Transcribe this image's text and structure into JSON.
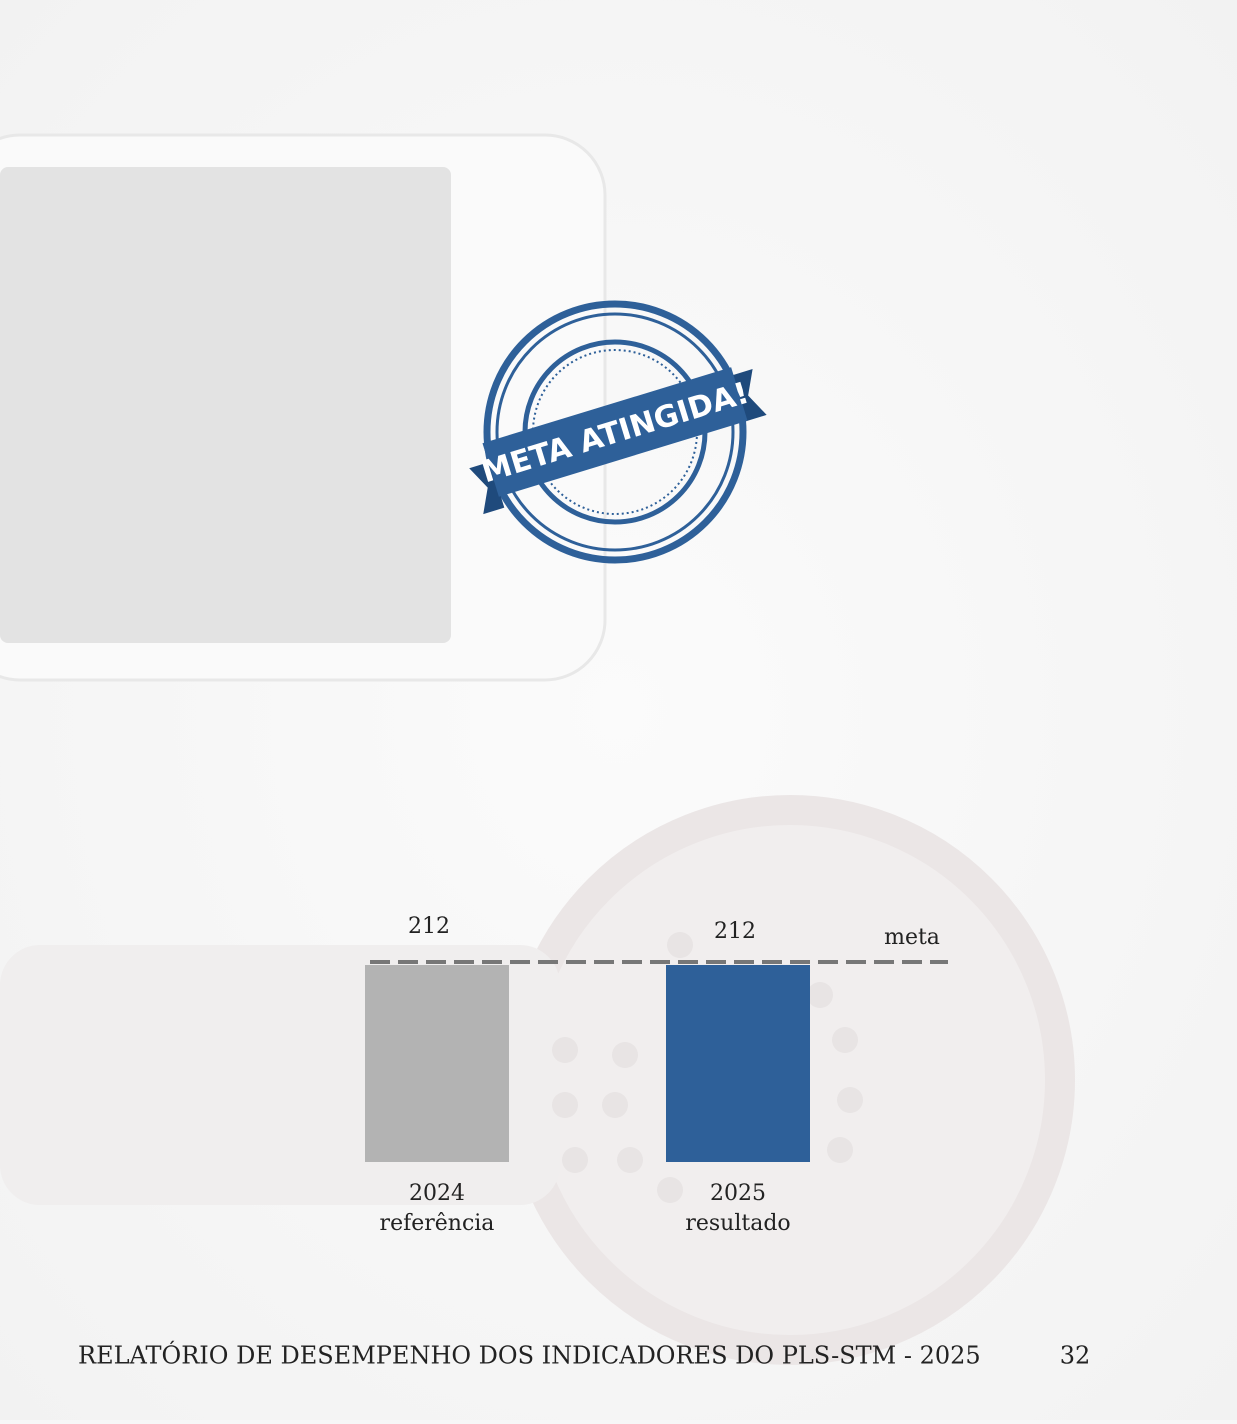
{
  "stamp": {
    "text": "META ATINGIDA!"
  },
  "chart_data": {
    "type": "bar",
    "categories": [
      "2024",
      "2025"
    ],
    "category_notes": [
      "referência",
      "resultado"
    ],
    "values": [
      212,
      212
    ],
    "colors": [
      "#b3b3b3",
      "#2e6099"
    ],
    "target": {
      "label": "meta",
      "value": 212,
      "color": "#777777"
    }
  },
  "footer": {
    "title": "RELATÓRIO DE DESEMPENHO DOS INDICADORES DO PLS-STM - 2025",
    "page": 32
  }
}
